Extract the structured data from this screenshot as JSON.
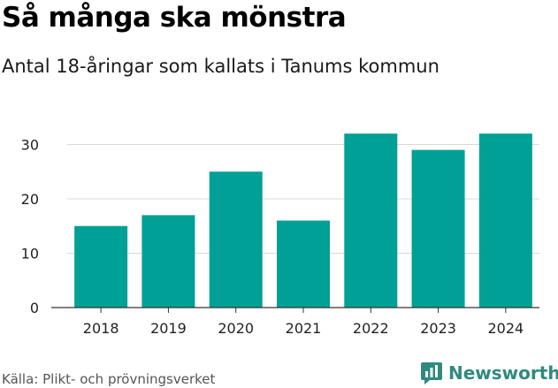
{
  "chart_data": {
    "type": "bar",
    "title": "Så många ska mönstra",
    "subtitle": "Antal 18-åringar som kallats i Tanums kommun",
    "categories": [
      "2018",
      "2019",
      "2020",
      "2021",
      "2022",
      "2023",
      "2024"
    ],
    "values": [
      15,
      17,
      25,
      16,
      32,
      29,
      32
    ],
    "yticks": [
      0,
      10,
      20,
      30
    ],
    "ylim": [
      0,
      33
    ],
    "xlabel": "",
    "ylabel": "",
    "grid": true,
    "bar_color": "#00a096"
  },
  "footer": {
    "source": "Källa: Plikt- och prövningsverket",
    "brand": "Newsworthy",
    "brand_color": "#2f8a7d"
  },
  "icons": {
    "brand_logo": "newsworthy-logo-icon"
  }
}
